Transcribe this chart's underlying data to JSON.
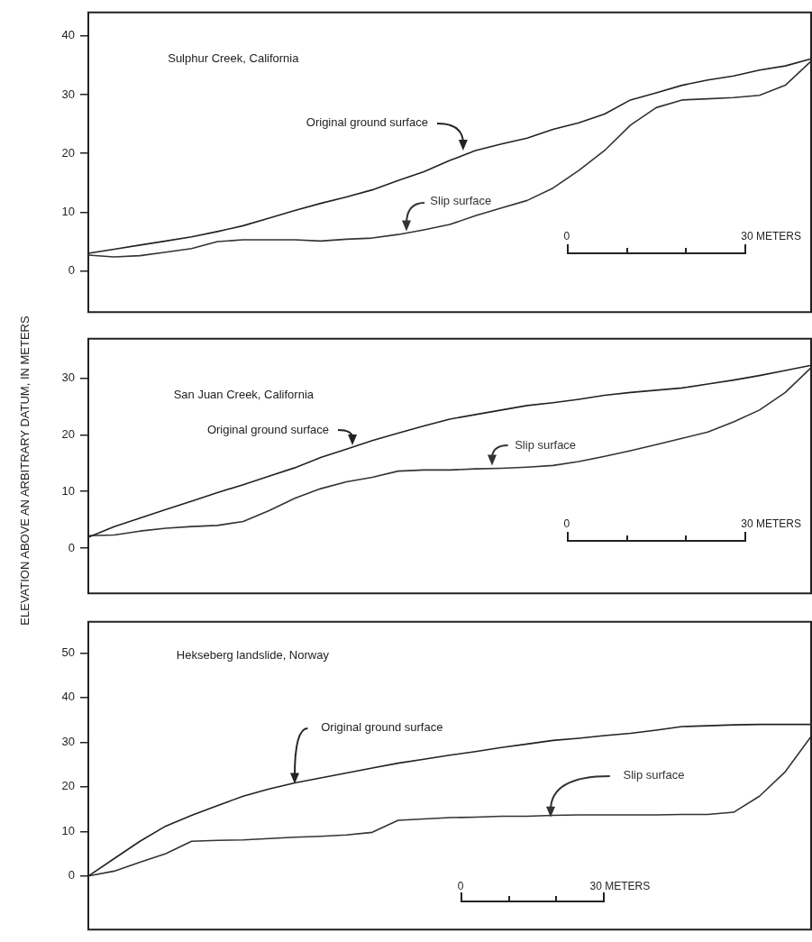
{
  "chart_data": [
    {
      "type": "line",
      "title": "Sulphur Creek, California",
      "categories": [
        null,
        null,
        null,
        null,
        null,
        null,
        null,
        null,
        null,
        null,
        null,
        null,
        null,
        null,
        null,
        null,
        null,
        null,
        null,
        null,
        null,
        null,
        null,
        null,
        null,
        null,
        null,
        null,
        null
      ],
      "series": [
        {
          "name": "Original ground surface",
          "color": "#222222",
          "values": [
            3.0,
            3.7,
            4.4,
            5.1,
            5.8,
            6.7,
            7.7,
            9.0,
            10.3,
            11.5,
            12.6,
            13.8,
            15.4,
            16.9,
            18.8,
            20.5,
            21.6,
            22.6,
            24.1,
            25.2,
            26.7,
            29.1,
            30.3,
            31.6,
            32.5,
            33.2,
            34.2,
            34.9,
            36.1
          ]
        },
        {
          "name": "Slip surface",
          "color": "#333333",
          "values": [
            2.7,
            2.4,
            2.6,
            3.2,
            3.8,
            5.0,
            5.3,
            5.3,
            5.3,
            5.1,
            5.4,
            5.6,
            6.2,
            7.0,
            7.9,
            9.4,
            10.7,
            12.0,
            14.1,
            17.1,
            20.5,
            24.8,
            27.8,
            29.1,
            29.3,
            29.5,
            29.9,
            31.6,
            35.7
          ]
        }
      ],
      "ylim": [
        -7,
        44
      ],
      "yticks": [
        0,
        10,
        20,
        30,
        40
      ],
      "tick_labels": "y",
      "marker": "none",
      "line_style": "solid",
      "annotations": [
        "0",
        "30 METERS"
      ]
    },
    {
      "type": "line",
      "title": "San Juan Creek, California",
      "ylabel": "ELEVATION ABOVE AN ARBITRARY DATUM, IN METERS",
      "categories": [
        null,
        null,
        null,
        null,
        null,
        null,
        null,
        null,
        null,
        null,
        null,
        null,
        null,
        null,
        null,
        null,
        null,
        null,
        null,
        null,
        null,
        null,
        null,
        null,
        null,
        null,
        null,
        null,
        null
      ],
      "series": [
        {
          "name": "Original ground surface",
          "color": "#222222",
          "values": [
            1.9,
            3.8,
            5.3,
            6.8,
            8.3,
            9.8,
            11.2,
            12.7,
            14.2,
            16.0,
            17.5,
            19.0,
            20.3,
            21.6,
            22.8,
            23.6,
            24.4,
            25.2,
            25.7,
            26.3,
            27.0,
            27.5,
            27.9,
            28.3,
            29.0,
            29.7,
            30.5,
            31.4,
            32.3
          ]
        },
        {
          "name": "Slip surface",
          "color": "#333333",
          "values": [
            2.2,
            2.3,
            3.0,
            3.5,
            3.8,
            4.0,
            4.7,
            6.6,
            8.8,
            10.5,
            11.7,
            12.5,
            13.6,
            13.8,
            13.8,
            14.0,
            14.1,
            14.3,
            14.6,
            15.3,
            16.2,
            17.2,
            18.3,
            19.4,
            20.5,
            22.3,
            24.4,
            27.5,
            31.9
          ]
        }
      ],
      "ylim": [
        -8,
        37
      ],
      "yticks": [
        0,
        10,
        20,
        30
      ],
      "tick_labels": "y",
      "marker": "none",
      "line_style": "solid",
      "annotations": [
        "0",
        "30 METERS"
      ]
    },
    {
      "type": "line",
      "title": "Hekseberg landslide, Norway",
      "categories": [
        null,
        null,
        null,
        null,
        null,
        null,
        null,
        null,
        null,
        null,
        null,
        null,
        null,
        null,
        null,
        null,
        null,
        null,
        null,
        null,
        null,
        null,
        null,
        null,
        null,
        null,
        null,
        null,
        null
      ],
      "series": [
        {
          "name": "Original ground surface",
          "color": "#222222",
          "values": [
            0,
            3.9,
            7.8,
            11.2,
            13.6,
            15.8,
            17.9,
            19.5,
            20.9,
            22.0,
            23.1,
            24.2,
            25.3,
            26.2,
            27.1,
            27.9,
            28.8,
            29.6,
            30.4,
            30.9,
            31.5,
            32.0,
            32.7,
            33.5,
            33.7,
            33.9,
            34.0,
            34.0,
            34.0
          ]
        },
        {
          "name": "Slip surface",
          "color": "#333333",
          "values": [
            0,
            1.1,
            3.1,
            5.0,
            7.8,
            8.0,
            8.1,
            8.4,
            8.7,
            8.9,
            9.2,
            9.8,
            12.5,
            12.8,
            13.1,
            13.2,
            13.4,
            13.4,
            13.6,
            13.7,
            13.7,
            13.7,
            13.7,
            13.8,
            13.8,
            14.3,
            17.9,
            23.4,
            31.3
          ]
        }
      ],
      "ylim": [
        -12,
        57
      ],
      "yticks": [
        0,
        10,
        20,
        30,
        40,
        50
      ],
      "tick_labels": "y",
      "marker": "none",
      "line_style": "solid",
      "annotations": [
        "0",
        "30 METERS"
      ]
    }
  ]
}
